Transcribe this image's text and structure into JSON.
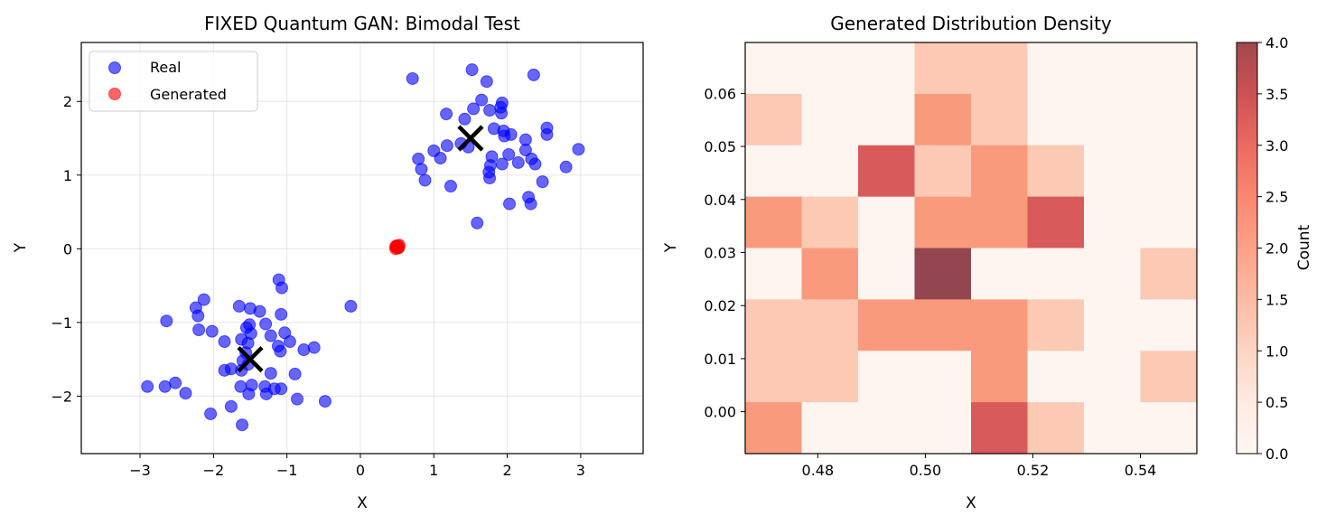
{
  "chart_data": [
    {
      "type": "scatter",
      "title": "FIXED Quantum GAN: Bimodal Test",
      "xlabel": "X",
      "ylabel": "Y",
      "xlim": [
        -3.8,
        3.85
      ],
      "ylim": [
        -2.78,
        2.8
      ],
      "xticks": [
        -3,
        -2,
        -1,
        0,
        1,
        2,
        3
      ],
      "yticks": [
        -2,
        -1,
        0,
        1,
        2
      ],
      "grid": true,
      "legend": "upper-left",
      "series": [
        {
          "name": "Real",
          "color": "#0000ff",
          "points": [
            [
              0.71,
              2.31
            ],
            [
              1.52,
              2.43
            ],
            [
              1.72,
              2.27
            ],
            [
              2.36,
              2.36
            ],
            [
              1.65,
              2.02
            ],
            [
              1.93,
              1.98
            ],
            [
              1.54,
              1.9
            ],
            [
              1.76,
              1.88
            ],
            [
              1.91,
              1.92
            ],
            [
              1.92,
              1.84
            ],
            [
              1.17,
              1.83
            ],
            [
              1.42,
              1.76
            ],
            [
              1.82,
              1.63
            ],
            [
              1.95,
              1.6
            ],
            [
              2.54,
              1.64
            ],
            [
              2.54,
              1.55
            ],
            [
              1.96,
              1.53
            ],
            [
              2.05,
              1.55
            ],
            [
              2.25,
              1.48
            ],
            [
              1.37,
              1.43
            ],
            [
              1.47,
              1.38
            ],
            [
              1.18,
              1.4
            ],
            [
              1.0,
              1.33
            ],
            [
              1.09,
              1.23
            ],
            [
              0.79,
              1.22
            ],
            [
              2.25,
              1.34
            ],
            [
              2.33,
              1.22
            ],
            [
              2.38,
              1.15
            ],
            [
              2.15,
              1.17
            ],
            [
              1.79,
              1.25
            ],
            [
              1.77,
              1.13
            ],
            [
              1.93,
              1.15
            ],
            [
              2.02,
              1.28
            ],
            [
              2.97,
              1.35
            ],
            [
              2.8,
              1.11
            ],
            [
              0.83,
              1.08
            ],
            [
              1.75,
              1.04
            ],
            [
              1.76,
              0.96
            ],
            [
              0.88,
              0.93
            ],
            [
              2.48,
              0.91
            ],
            [
              1.23,
              0.85
            ],
            [
              2.29,
              0.7
            ],
            [
              2.32,
              0.61
            ],
            [
              2.03,
              0.61
            ],
            [
              1.59,
              0.35
            ],
            [
              -1.11,
              -0.42
            ],
            [
              -1.07,
              -0.53
            ],
            [
              -0.13,
              -0.78
            ],
            [
              -2.13,
              -0.69
            ],
            [
              -2.24,
              -0.8
            ],
            [
              -2.21,
              -0.91
            ],
            [
              -1.65,
              -0.78
            ],
            [
              -1.5,
              -0.81
            ],
            [
              -1.37,
              -0.85
            ],
            [
              -1.08,
              -0.89
            ],
            [
              -2.64,
              -0.98
            ],
            [
              -1.29,
              -1.02
            ],
            [
              -1.51,
              -1.03
            ],
            [
              -1.55,
              -1.07
            ],
            [
              -2.02,
              -1.12
            ],
            [
              -2.2,
              -1.1
            ],
            [
              -1.22,
              -1.18
            ],
            [
              -1.03,
              -1.14
            ],
            [
              -1.49,
              -1.15
            ],
            [
              -0.96,
              -1.26
            ],
            [
              -1.85,
              -1.26
            ],
            [
              -1.62,
              -1.23
            ],
            [
              -1.53,
              -1.28
            ],
            [
              -1.12,
              -1.32
            ],
            [
              -0.77,
              -1.37
            ],
            [
              -1.56,
              -1.41
            ],
            [
              -1.09,
              -1.39
            ],
            [
              -0.63,
              -1.34
            ],
            [
              -1.6,
              -1.52
            ],
            [
              -1.76,
              -1.63
            ],
            [
              -1.85,
              -1.65
            ],
            [
              -1.62,
              -1.65
            ],
            [
              -1.53,
              -1.57
            ],
            [
              -1.22,
              -1.69
            ],
            [
              -0.89,
              -1.7
            ],
            [
              -1.63,
              -1.87
            ],
            [
              -1.48,
              -1.85
            ],
            [
              -1.3,
              -1.87
            ],
            [
              -1.17,
              -1.9
            ],
            [
              -1.08,
              -1.9
            ],
            [
              -1.28,
              -1.97
            ],
            [
              -1.52,
              -1.97
            ],
            [
              -2.9,
              -1.87
            ],
            [
              -2.66,
              -1.87
            ],
            [
              -2.52,
              -1.82
            ],
            [
              -2.38,
              -1.96
            ],
            [
              -0.86,
              -2.04
            ],
            [
              -0.48,
              -2.07
            ],
            [
              -1.76,
              -2.14
            ],
            [
              -2.04,
              -2.24
            ],
            [
              -1.61,
              -2.39
            ]
          ]
        },
        {
          "name": "Generated",
          "color": "#ff0000",
          "points": [
            [
              0.48,
              0.0
            ],
            [
              0.49,
              0.04
            ],
            [
              0.5,
              0.03
            ],
            [
              0.51,
              0.02
            ],
            [
              0.52,
              0.01
            ],
            [
              0.53,
              0.05
            ],
            [
              0.5,
              0.01
            ],
            [
              0.49,
              0.02
            ],
            [
              0.51,
              0.04
            ],
            [
              0.5,
              0.03
            ],
            [
              0.52,
              0.02
            ],
            [
              0.48,
              0.03
            ]
          ]
        }
      ],
      "markers": [
        [
          1.5,
          1.5
        ],
        [
          -1.5,
          -1.5
        ]
      ]
    },
    {
      "type": "heatmap",
      "title": "Generated Distribution Density",
      "xlabel": "X",
      "ylabel": "Y",
      "x_range": [
        0.4665,
        0.5505
      ],
      "y_range": [
        -0.0079,
        0.0696
      ],
      "xticks": [
        0.48,
        0.5,
        0.52,
        0.54
      ],
      "xtick_labels": [
        "0.48",
        "0.50",
        "0.52",
        "0.54"
      ],
      "yticks": [
        0.0,
        0.01,
        0.02,
        0.03,
        0.04,
        0.05,
        0.06
      ],
      "ytick_labels": [
        "0.00",
        "0.01",
        "0.02",
        "0.03",
        "0.04",
        "0.05",
        "0.06"
      ],
      "counts_top_to_bottom": [
        [
          0,
          0,
          0,
          1,
          1,
          0,
          0,
          0
        ],
        [
          1,
          0,
          0,
          2,
          1,
          0,
          0,
          0
        ],
        [
          0,
          0,
          3,
          1,
          2,
          1,
          0,
          0
        ],
        [
          2,
          1,
          0,
          2,
          2,
          3,
          0,
          0
        ],
        [
          0,
          2,
          0,
          4,
          0,
          0,
          0,
          1
        ],
        [
          1,
          1,
          2,
          2,
          2,
          1,
          0,
          0
        ],
        [
          1,
          1,
          0,
          0,
          2,
          0,
          0,
          1
        ],
        [
          2,
          0,
          0,
          0,
          3,
          1,
          0,
          0
        ]
      ],
      "colorbar": {
        "label": "Count",
        "range": [
          0,
          4
        ],
        "ticks": [
          "0.0",
          "0.5",
          "1.0",
          "1.5",
          "2.0",
          "2.5",
          "3.0",
          "3.5",
          "4.0"
        ]
      }
    }
  ]
}
